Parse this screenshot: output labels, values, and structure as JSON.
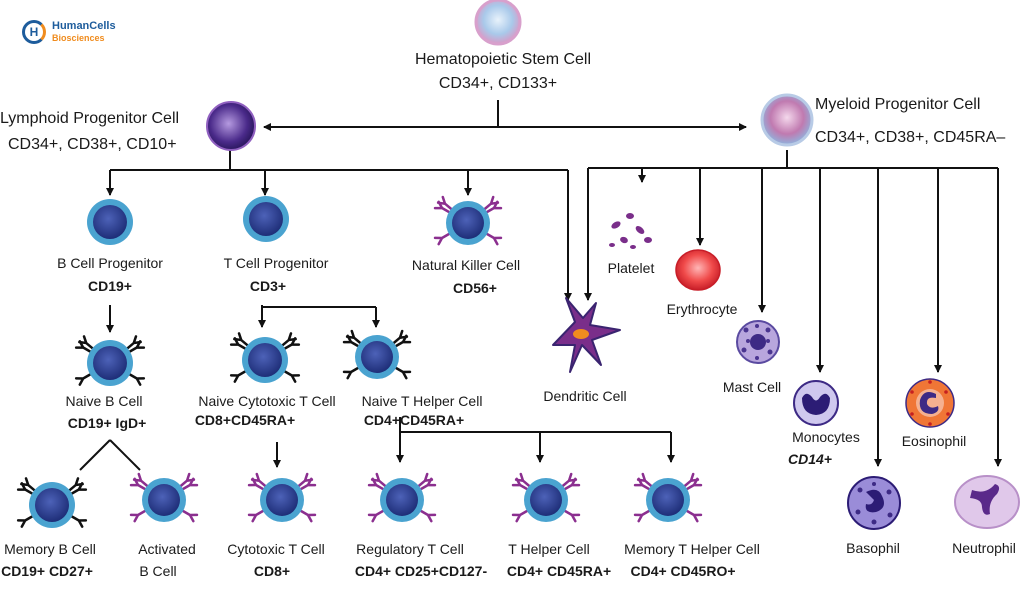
{
  "logo": {
    "mark": "H",
    "name": "HumanCells",
    "sub": "Biosciences"
  },
  "hsc": {
    "name": "Hematopoietic Stem Cell",
    "markers": "CD34+,  CD133+"
  },
  "lymphoid": {
    "name": "Lymphoid Progenitor Cell",
    "markers": "CD34+,  CD38+, CD10+"
  },
  "myeloid": {
    "name": "Myeloid Progenitor Cell",
    "markers": "CD34+,  CD38+, CD45RA–"
  },
  "b_prog": {
    "name": "B Cell Progenitor",
    "markers": "CD19+"
  },
  "t_prog": {
    "name": "T Cell Progenitor",
    "markers": "CD3+"
  },
  "nk": {
    "name": "Natural Killer Cell",
    "markers": "CD56+"
  },
  "dendritic": {
    "name": "Dendritic Cell"
  },
  "platelet": {
    "name": "Platelet"
  },
  "erythrocyte": {
    "name": "Erythrocyte"
  },
  "mast": {
    "name": "Mast Cell"
  },
  "monocyte": {
    "name": "Monocytes",
    "markers": "CD14+"
  },
  "eosinophil": {
    "name": "Eosinophil"
  },
  "basophil": {
    "name": "Basophil"
  },
  "neutrophil": {
    "name": "Neutrophil"
  },
  "naive_b": {
    "name": "Naive B Cell",
    "markers": "CD19+ IgD+"
  },
  "naive_ct": {
    "name": "Naive Cytotoxic T Cell",
    "markers": "CD8+CD45RA+"
  },
  "naive_th": {
    "name": "Naive T Helper Cell",
    "markers": "CD4+CD45RA+"
  },
  "memory_b": {
    "name": "Memory B Cell",
    "markers": "CD19+ CD27+"
  },
  "activated_b": {
    "name1": "Activated",
    "name2": "B Cell"
  },
  "cytotoxic_t": {
    "name": "Cytotoxic T Cell",
    "markers": "CD8+"
  },
  "treg": {
    "name": "Regulatory T Cell",
    "markers": "CD4+ CD25+CD127-"
  },
  "th": {
    "name": "T Helper Cell",
    "markers": "CD4+ CD45RA+"
  },
  "memory_th": {
    "name": "Memory T Helper Cell",
    "markers": "CD4+ CD45RO+"
  },
  "colors": {
    "cell_ring": "#4aa3d0",
    "cell_nucleus": "#2b3f8f",
    "receptor_black": "#111111",
    "receptor_purple": "#8b2f8f",
    "erythrocyte": "#e8323c",
    "eosinophil": "#e86a2c"
  }
}
